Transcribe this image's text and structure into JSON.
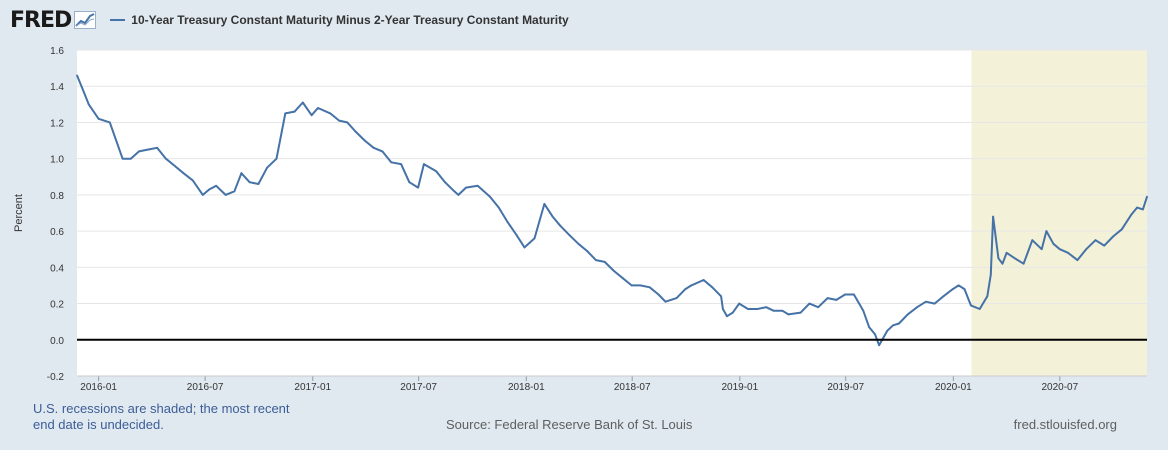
{
  "header": {
    "logo_text": "FRED",
    "logo_icon": "chart-trend-icon",
    "series_label": "10-Year Treasury Constant Maturity Minus 2-Year Treasury Constant Maturity"
  },
  "footer": {
    "note_line1": "U.S. recessions are shaded; the most recent",
    "note_line2": "end date is undecided.",
    "source": "Source: Federal Reserve Bank of St. Louis",
    "url": "fred.stlouisfed.org"
  },
  "colors": {
    "line": "#4572a7",
    "recession": "#f4f1d9",
    "background": "#e1e9f0",
    "plot": "#ffffff",
    "zero_line": "#000000"
  },
  "chart_data": {
    "type": "line",
    "title": "",
    "ylabel": "Percent",
    "xlabel": "",
    "ylim": [
      -0.2,
      1.6
    ],
    "yticks": [
      -0.2,
      0.0,
      0.2,
      0.4,
      0.6,
      0.8,
      1.0,
      1.2,
      1.4,
      1.6
    ],
    "xlim": [
      "2015-11-25",
      "2020-11-27"
    ],
    "xticks": [
      "2016-01",
      "2016-07",
      "2017-01",
      "2017-07",
      "2018-01",
      "2018-07",
      "2019-01",
      "2019-07",
      "2020-01",
      "2020-07"
    ],
    "grid": true,
    "legend": "top-left",
    "recession_shading": [
      {
        "start": "2020-02-01",
        "end": "2020-11-27"
      }
    ],
    "series": [
      {
        "name": "10-Year Treasury Constant Maturity Minus 2-Year Treasury Constant Maturity",
        "x": [
          "2015-11-25",
          "2015-12-05",
          "2015-12-15",
          "2016-01-01",
          "2016-01-20",
          "2016-02-11",
          "2016-02-25",
          "2016-03-10",
          "2016-03-25",
          "2016-04-10",
          "2016-04-25",
          "2016-05-10",
          "2016-05-25",
          "2016-06-10",
          "2016-06-27",
          "2016-07-08",
          "2016-07-20",
          "2016-08-05",
          "2016-08-20",
          "2016-09-01",
          "2016-09-15",
          "2016-09-30",
          "2016-10-15",
          "2016-10-31",
          "2016-11-09",
          "2016-11-15",
          "2016-12-01",
          "2016-12-15",
          "2016-12-30",
          "2017-01-10",
          "2017-01-31",
          "2017-02-15",
          "2017-03-01",
          "2017-03-15",
          "2017-03-31",
          "2017-04-15",
          "2017-04-30",
          "2017-05-15",
          "2017-06-01",
          "2017-06-15",
          "2017-06-30",
          "2017-07-10",
          "2017-07-31",
          "2017-08-15",
          "2017-08-31",
          "2017-09-07",
          "2017-09-20",
          "2017-10-10",
          "2017-10-31",
          "2017-11-15",
          "2017-11-30",
          "2017-12-15",
          "2017-12-29",
          "2018-01-15",
          "2018-02-01",
          "2018-02-15",
          "2018-02-28",
          "2018-03-15",
          "2018-03-31",
          "2018-04-15",
          "2018-04-30",
          "2018-05-15",
          "2018-05-31",
          "2018-06-15",
          "2018-06-30",
          "2018-07-15",
          "2018-07-31",
          "2018-08-15",
          "2018-08-27",
          "2018-09-15",
          "2018-09-30",
          "2018-10-10",
          "2018-10-31",
          "2018-11-15",
          "2018-11-30",
          "2018-12-03",
          "2018-12-10",
          "2018-12-20",
          "2018-12-31",
          "2019-01-15",
          "2019-01-31",
          "2019-02-15",
          "2019-02-28",
          "2019-03-15",
          "2019-03-25",
          "2019-04-15",
          "2019-04-30",
          "2019-05-15",
          "2019-05-31",
          "2019-06-15",
          "2019-06-30",
          "2019-07-15",
          "2019-07-31",
          "2019-08-10",
          "2019-08-20",
          "2019-08-27",
          "2019-09-10",
          "2019-09-20",
          "2019-09-30",
          "2019-10-15",
          "2019-10-31",
          "2019-11-15",
          "2019-11-30",
          "2019-12-15",
          "2019-12-31",
          "2020-01-10",
          "2020-01-20",
          "2020-01-31",
          "2020-02-15",
          "2020-02-28",
          "2020-03-05",
          "2020-03-09",
          "2020-03-18",
          "2020-03-25",
          "2020-04-01",
          "2020-04-15",
          "2020-04-30",
          "2020-05-15",
          "2020-05-31",
          "2020-06-08",
          "2020-06-20",
          "2020-07-01",
          "2020-07-15",
          "2020-07-31",
          "2020-08-15",
          "2020-08-31",
          "2020-09-15",
          "2020-09-30",
          "2020-10-15",
          "2020-10-31",
          "2020-11-10",
          "2020-11-20",
          "2020-11-27"
        ],
        "values": [
          1.46,
          1.38,
          1.3,
          1.22,
          1.2,
          1.0,
          1.0,
          1.04,
          1.05,
          1.06,
          1.0,
          0.96,
          0.92,
          0.88,
          0.8,
          0.83,
          0.85,
          0.8,
          0.82,
          0.92,
          0.87,
          0.86,
          0.95,
          1.0,
          1.15,
          1.25,
          1.26,
          1.31,
          1.24,
          1.28,
          1.25,
          1.21,
          1.2,
          1.15,
          1.1,
          1.06,
          1.04,
          0.98,
          0.97,
          0.87,
          0.84,
          0.97,
          0.93,
          0.87,
          0.82,
          0.8,
          0.84,
          0.85,
          0.79,
          0.73,
          0.65,
          0.58,
          0.51,
          0.56,
          0.75,
          0.68,
          0.63,
          0.58,
          0.53,
          0.49,
          0.44,
          0.43,
          0.38,
          0.34,
          0.3,
          0.3,
          0.29,
          0.25,
          0.21,
          0.23,
          0.28,
          0.3,
          0.33,
          0.29,
          0.24,
          0.17,
          0.13,
          0.15,
          0.2,
          0.17,
          0.17,
          0.18,
          0.16,
          0.16,
          0.14,
          0.15,
          0.2,
          0.18,
          0.23,
          0.22,
          0.25,
          0.25,
          0.16,
          0.07,
          0.03,
          -0.03,
          0.05,
          0.08,
          0.09,
          0.14,
          0.18,
          0.21,
          0.2,
          0.24,
          0.28,
          0.3,
          0.28,
          0.19,
          0.17,
          0.24,
          0.36,
          0.68,
          0.45,
          0.42,
          0.48,
          0.45,
          0.42,
          0.55,
          0.5,
          0.6,
          0.53,
          0.5,
          0.48,
          0.44,
          0.5,
          0.55,
          0.52,
          0.57,
          0.61,
          0.69,
          0.73,
          0.72,
          0.79
        ]
      }
    ]
  }
}
